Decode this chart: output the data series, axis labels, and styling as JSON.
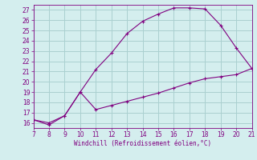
{
  "xlabel": "Windchill (Refroidissement éolien,°C)",
  "x_upper": [
    7,
    8,
    9,
    10,
    11,
    12,
    13,
    14,
    15,
    16,
    17,
    18,
    19,
    20,
    21
  ],
  "y_upper": [
    16.3,
    16.0,
    16.7,
    19.0,
    21.2,
    22.8,
    24.7,
    25.9,
    26.6,
    27.2,
    27.2,
    27.1,
    25.5,
    23.3,
    21.3
  ],
  "x_lower": [
    7,
    8,
    9,
    10,
    11,
    12,
    13,
    14,
    15,
    16,
    17,
    18,
    19,
    20,
    21
  ],
  "y_lower": [
    16.3,
    15.8,
    16.7,
    19.0,
    17.3,
    17.7,
    18.1,
    18.5,
    18.9,
    19.4,
    19.9,
    20.3,
    20.5,
    20.7,
    21.3
  ],
  "line_color": "#800080",
  "bg_color": "#d4eeee",
  "grid_color": "#aad0d0",
  "axis_color": "#800080",
  "tick_label_color": "#800080",
  "xlim": [
    7,
    21
  ],
  "ylim": [
    15.5,
    27.5
  ],
  "xticks": [
    7,
    8,
    9,
    10,
    11,
    12,
    13,
    14,
    15,
    16,
    17,
    18,
    19,
    20,
    21
  ],
  "yticks": [
    16,
    17,
    18,
    19,
    20,
    21,
    22,
    23,
    24,
    25,
    26,
    27
  ]
}
